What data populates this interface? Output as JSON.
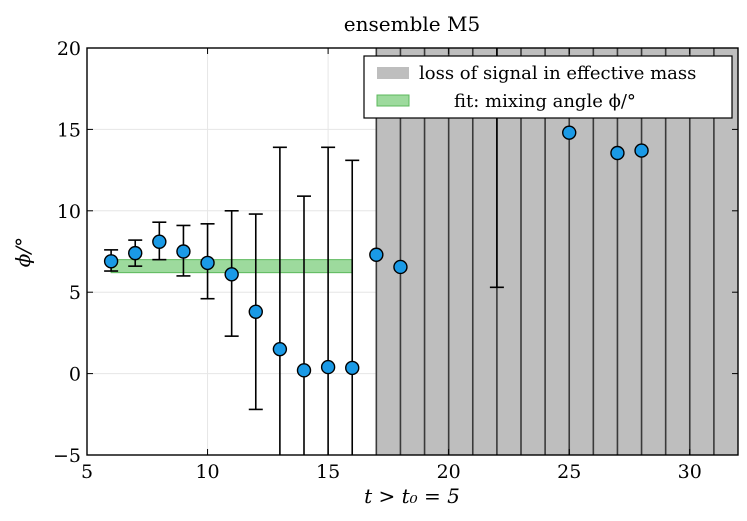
{
  "chart_data": {
    "type": "scatter",
    "title": "ensemble M5",
    "xlabel": "t > t₀ = 5",
    "ylabel": "ϕ/°",
    "xlim": [
      5,
      32
    ],
    "ylim": [
      -5,
      20
    ],
    "xticks": [
      5,
      10,
      15,
      20,
      25,
      30
    ],
    "yticks": [
      -5,
      0,
      5,
      10,
      15,
      20
    ],
    "xtick_labels": [
      "5",
      "10",
      "15",
      "20",
      "25",
      "30"
    ],
    "ytick_labels": [
      "−5",
      "0",
      "5",
      "10",
      "15",
      "20"
    ],
    "grid": true,
    "points": [
      {
        "x": 6,
        "y": 6.9,
        "lo": 6.3,
        "hi": 7.6
      },
      {
        "x": 7,
        "y": 7.4,
        "lo": 6.6,
        "hi": 8.2
      },
      {
        "x": 8,
        "y": 8.1,
        "lo": 7.0,
        "hi": 9.3
      },
      {
        "x": 9,
        "y": 7.5,
        "lo": 6.0,
        "hi": 9.1
      },
      {
        "x": 10,
        "y": 6.8,
        "lo": 4.6,
        "hi": 9.2
      },
      {
        "x": 11,
        "y": 6.1,
        "lo": 2.3,
        "hi": 10.0
      },
      {
        "x": 12,
        "y": 3.8,
        "lo": -2.2,
        "hi": 9.8
      },
      {
        "x": 13,
        "y": 1.5,
        "lo": -5.0,
        "hi": 13.9
      },
      {
        "x": 14,
        "y": 0.2,
        "lo": -5.0,
        "hi": 10.9
      },
      {
        "x": 15,
        "y": 0.4,
        "lo": -5.0,
        "hi": 13.9
      },
      {
        "x": 16,
        "y": 0.35,
        "lo": -5.0,
        "hi": 13.1
      },
      {
        "x": 17,
        "y": 7.3,
        "lo": null,
        "hi": null
      },
      {
        "x": 18,
        "y": 6.55,
        "lo": null,
        "hi": null
      },
      {
        "x": 22,
        "y": null,
        "lo": 5.3,
        "hi": 20.0
      },
      {
        "x": 25,
        "y": 14.8,
        "lo": null,
        "hi": null
      },
      {
        "x": 27,
        "y": 13.55,
        "lo": null,
        "hi": null
      },
      {
        "x": 28,
        "y": 13.7,
        "lo": null,
        "hi": null
      }
    ],
    "fit_band": {
      "x_start": 6,
      "x_end": 16,
      "y_low": 6.2,
      "y_high": 7.0
    },
    "signal_loss_region": {
      "x_start": 17,
      "x_end": 32,
      "line_step": 1
    },
    "legend": {
      "position": "top-right",
      "entries": [
        "loss of signal in effective mass",
        "fit: mixing angle ϕ/°"
      ]
    },
    "colors": {
      "marker_fill": "#1a9ae6",
      "marker_edge": "#000000",
      "fit_band": "#7ccd7c",
      "fit_band_edge": "#5cb85c",
      "loss_region": "#bebebe",
      "loss_lines": "#3a3a3a",
      "grid": "#e6e6e6"
    }
  }
}
